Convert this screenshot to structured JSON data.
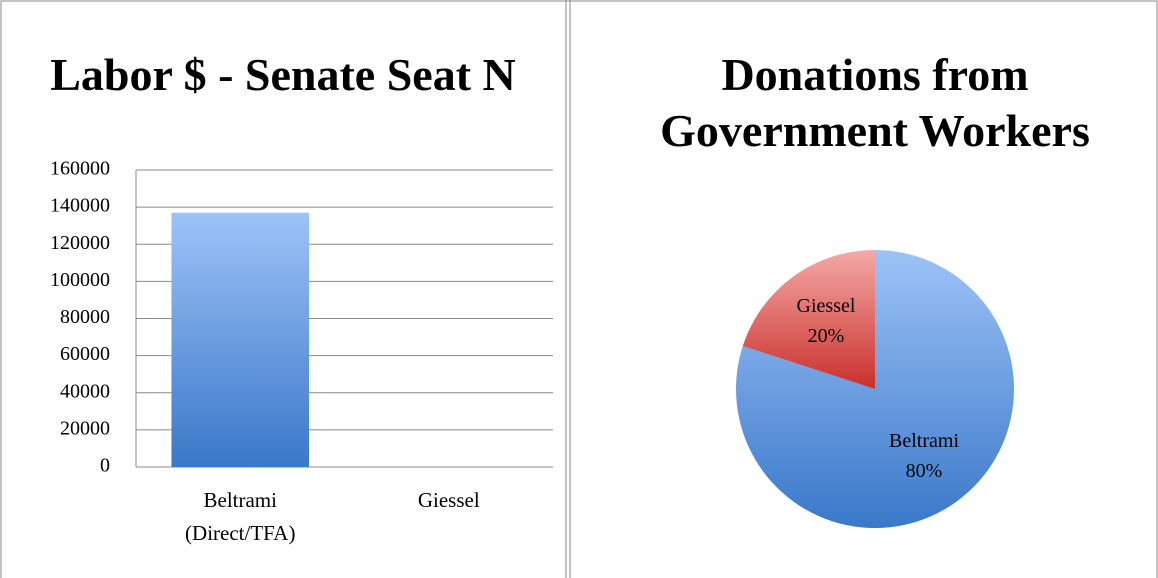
{
  "chart_data": [
    {
      "type": "bar",
      "title": "Labor $ - Senate Seat N",
      "categories": [
        "Beltrami (Direct/TFA)",
        "Giessel"
      ],
      "values": [
        137000,
        0
      ],
      "ylim": [
        0,
        160000
      ],
      "yticks": [
        0,
        20000,
        40000,
        60000,
        80000,
        100000,
        120000,
        140000,
        160000
      ],
      "grid": true,
      "color": "#4f81bd"
    },
    {
      "type": "pie",
      "title": "Donations from Government Workers",
      "categories": [
        "Beltrami",
        "Giessel"
      ],
      "values": [
        80,
        20
      ],
      "value_labels": [
        "80%",
        "20%"
      ],
      "colors": [
        "#4f81bd",
        "#c0504d"
      ]
    }
  ]
}
